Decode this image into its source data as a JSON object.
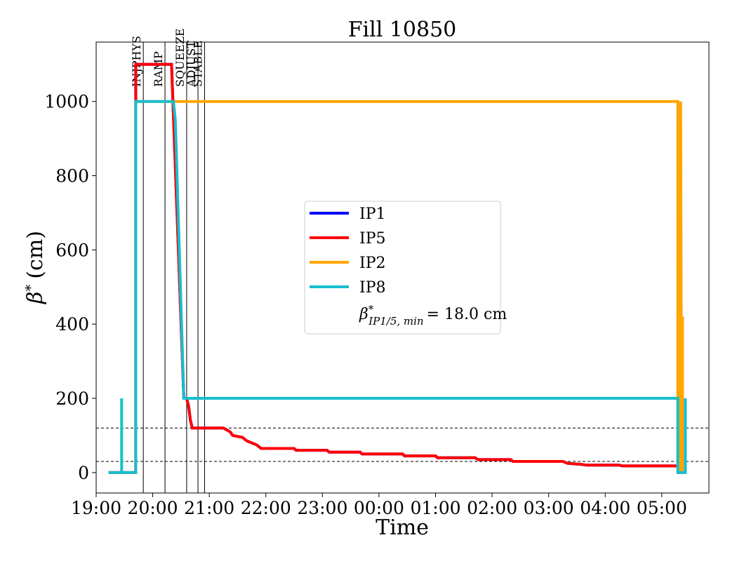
{
  "chart_data": {
    "type": "line",
    "title": "Fill 10850",
    "xlabel": "Time",
    "ylabel_symbol": "β",
    "ylabel_sup": "*",
    "ylabel_unit": "(cm)",
    "xlim": [
      "19:00",
      "05:50"
    ],
    "ylim": [
      -55,
      1160
    ],
    "grid": false,
    "legend_position": "center",
    "x_ticks": [
      "19:00",
      "20:00",
      "21:00",
      "22:00",
      "23:00",
      "00:00",
      "01:00",
      "02:00",
      "03:00",
      "04:00",
      "05:00"
    ],
    "y_ticks": [
      0,
      200,
      400,
      600,
      800,
      1000
    ],
    "phase_markers": [
      {
        "label": "INJPHYS",
        "time": "19:50"
      },
      {
        "label": "RAMP",
        "time": "20:13"
      },
      {
        "label": "SQUEEZE",
        "time": "20:36"
      },
      {
        "label": "ADJUST",
        "time": "20:48"
      },
      {
        "label": "STABLE",
        "time": "20:55"
      }
    ],
    "reference_lines": [
      120,
      30
    ],
    "series": [
      {
        "name": "IP1",
        "color": "#0000ff",
        "points": [
          [
            "19:13",
            0
          ],
          [
            "19:42",
            0
          ],
          [
            "19:42",
            1100
          ],
          [
            "20:20",
            1100
          ],
          [
            "20:33",
            200
          ],
          [
            "20:36",
            200
          ],
          [
            "20:38",
            180
          ],
          [
            "20:40",
            140
          ],
          [
            "20:42",
            120
          ],
          [
            "21:15",
            120
          ],
          [
            "21:22",
            110
          ],
          [
            "21:25",
            100
          ],
          [
            "21:35",
            95
          ],
          [
            "21:40",
            85
          ],
          [
            "21:50",
            75
          ],
          [
            "21:55",
            65
          ],
          [
            "22:30",
            65
          ],
          [
            "22:32",
            60
          ],
          [
            "23:05",
            60
          ],
          [
            "23:07",
            55
          ],
          [
            "23:40",
            55
          ],
          [
            "23:42",
            50
          ],
          [
            "00:25",
            50
          ],
          [
            "00:27",
            45
          ],
          [
            "01:00",
            45
          ],
          [
            "01:02",
            40
          ],
          [
            "01:42",
            40
          ],
          [
            "01:45",
            35
          ],
          [
            "02:20",
            35
          ],
          [
            "02:22",
            30
          ],
          [
            "03:15",
            30
          ],
          [
            "03:20",
            25
          ],
          [
            "03:35",
            22
          ],
          [
            "03:40",
            20
          ],
          [
            "04:15",
            20
          ],
          [
            "04:18",
            18
          ],
          [
            "05:17",
            18
          ],
          [
            "05:18",
            0
          ],
          [
            "05:22",
            0
          ]
        ]
      },
      {
        "name": "IP5",
        "color": "#ff0000",
        "points": [
          [
            "19:13",
            0
          ],
          [
            "19:42",
            0
          ],
          [
            "19:42",
            1100
          ],
          [
            "20:20",
            1100
          ],
          [
            "20:33",
            200
          ],
          [
            "20:36",
            200
          ],
          [
            "20:38",
            180
          ],
          [
            "20:40",
            140
          ],
          [
            "20:42",
            120
          ],
          [
            "21:15",
            120
          ],
          [
            "21:22",
            110
          ],
          [
            "21:25",
            100
          ],
          [
            "21:35",
            95
          ],
          [
            "21:40",
            85
          ],
          [
            "21:50",
            75
          ],
          [
            "21:55",
            65
          ],
          [
            "22:30",
            65
          ],
          [
            "22:32",
            60
          ],
          [
            "23:05",
            60
          ],
          [
            "23:07",
            55
          ],
          [
            "23:40",
            55
          ],
          [
            "23:42",
            50
          ],
          [
            "00:25",
            50
          ],
          [
            "00:27",
            45
          ],
          [
            "01:00",
            45
          ],
          [
            "01:02",
            40
          ],
          [
            "01:42",
            40
          ],
          [
            "01:45",
            35
          ],
          [
            "02:20",
            35
          ],
          [
            "02:22",
            30
          ],
          [
            "03:15",
            30
          ],
          [
            "03:20",
            25
          ],
          [
            "03:35",
            22
          ],
          [
            "03:40",
            20
          ],
          [
            "04:15",
            20
          ],
          [
            "04:18",
            18
          ],
          [
            "05:17",
            18
          ],
          [
            "05:18",
            0
          ],
          [
            "05:22",
            0
          ]
        ]
      },
      {
        "name": "IP2",
        "color": "#ffa500",
        "points": [
          [
            "19:13",
            0
          ],
          [
            "19:42",
            0
          ],
          [
            "19:42",
            1000
          ],
          [
            "20:23",
            1000
          ],
          [
            "20:23",
            1000
          ],
          [
            "05:17",
            1000
          ],
          [
            "05:17",
            0
          ],
          [
            "05:20",
            0
          ],
          [
            "05:20",
            1000
          ],
          [
            "05:21",
            0
          ],
          [
            "05:22",
            0
          ],
          [
            "05:22",
            420
          ],
          [
            "05:22",
            0
          ]
        ]
      },
      {
        "name": "IP8",
        "color": "#17becf",
        "points": [
          [
            "19:13",
            0
          ],
          [
            "19:27",
            0
          ],
          [
            "19:27",
            200
          ],
          [
            "19:27",
            0
          ],
          [
            "19:42",
            0
          ],
          [
            "19:42",
            1000
          ],
          [
            "20:22",
            1000
          ],
          [
            "20:24",
            950
          ],
          [
            "20:33",
            200
          ],
          [
            "05:17",
            200
          ],
          [
            "05:17",
            0
          ],
          [
            "05:25",
            0
          ],
          [
            "05:25",
            200
          ]
        ]
      }
    ],
    "legend_extra": {
      "symbol": "β",
      "sup": "*",
      "sub": "IP1/5, min",
      "text": "= 18.0 cm"
    }
  }
}
